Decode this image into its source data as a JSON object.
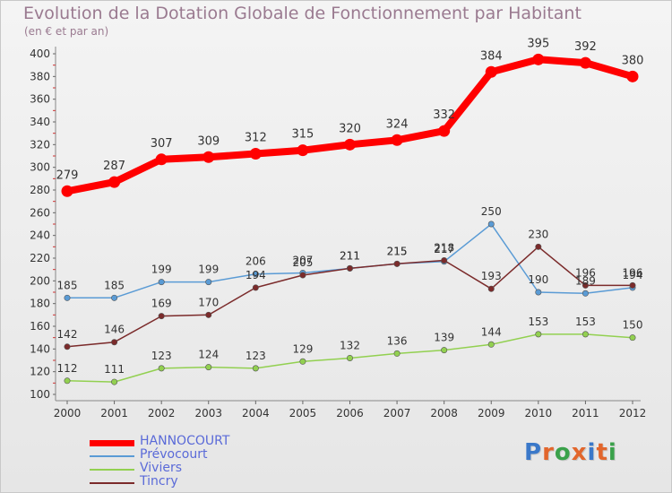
{
  "title": "Evolution de la Dotation Globale de Fonctionnement par Habitant",
  "subtitle": "(en € et par an)",
  "logo": "Proxiti",
  "colors": {
    "HANNOCOURT": "#ff0000",
    "Prévocourt": "#5a9bd5",
    "Viviers": "#92d050",
    "Tincry": "#7b2b2b",
    "logo_letters": [
      "#3a78c9",
      "#e2662c",
      "#3aa14a",
      "#e2662c",
      "#3a78c9",
      "#e2662c",
      "#3aa14a"
    ]
  },
  "chart_data": {
    "type": "line",
    "title": "Evolution de la Dotation Globale de Fonctionnement par Habitant",
    "subtitle": "(en € et par an)",
    "x": [
      "2000",
      "2001",
      "2002",
      "2003",
      "2004",
      "2005",
      "2006",
      "2007",
      "2008",
      "2009",
      "2010",
      "2011",
      "2012"
    ],
    "ylim": [
      100,
      400
    ],
    "yticks": [
      100,
      120,
      140,
      160,
      180,
      200,
      220,
      240,
      260,
      280,
      300,
      320,
      340,
      360,
      380,
      400
    ],
    "grid": false,
    "legend": "bottom-left",
    "series": [
      {
        "name": "HANNOCOURT",
        "values": [
          279,
          287,
          307,
          309,
          312,
          315,
          320,
          324,
          332,
          384,
          395,
          392,
          380
        ]
      },
      {
        "name": "Prévocourt",
        "values": [
          185,
          185,
          199,
          199,
          206,
          207,
          211,
          215,
          217,
          250,
          190,
          189,
          194
        ]
      },
      {
        "name": "Viviers",
        "values": [
          112,
          111,
          123,
          124,
          123,
          129,
          132,
          136,
          139,
          144,
          153,
          153,
          150
        ]
      },
      {
        "name": "Tincry",
        "values": [
          142,
          146,
          169,
          170,
          194,
          205,
          211,
          215,
          218,
          193,
          230,
          196,
          196
        ]
      }
    ]
  }
}
